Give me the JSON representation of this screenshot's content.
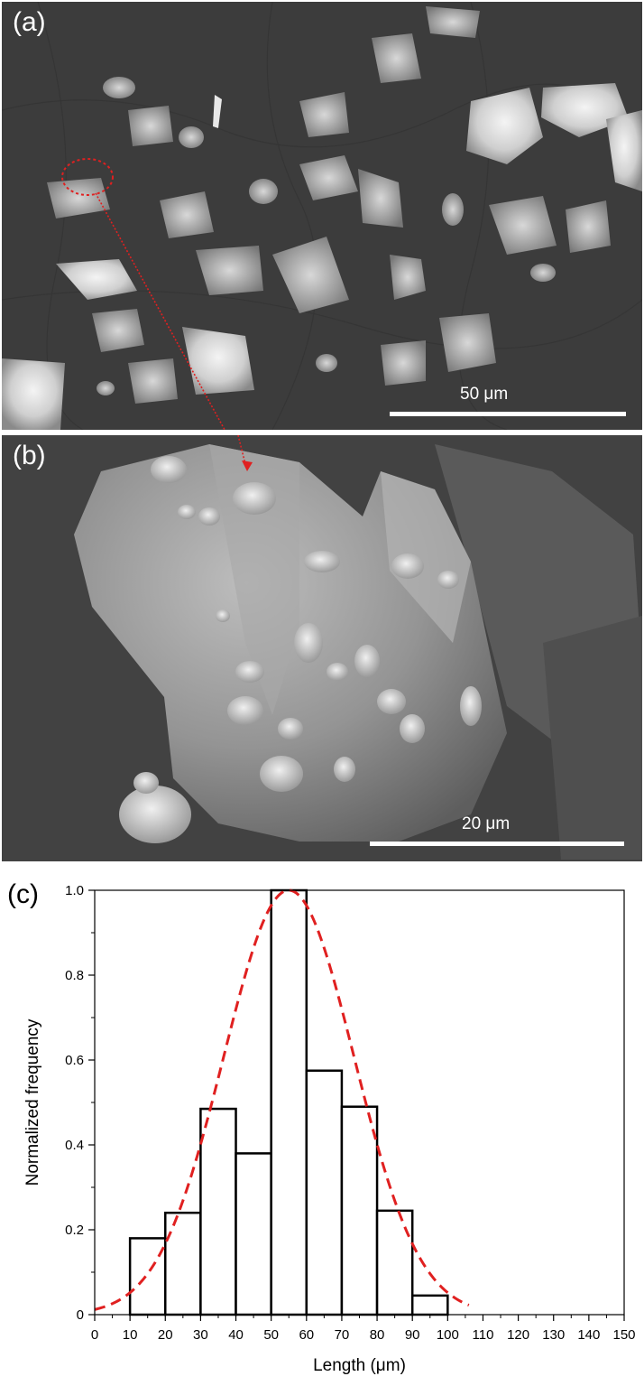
{
  "panels": {
    "a": {
      "label": "(a)",
      "scale_label": "50 μm"
    },
    "b": {
      "label": "(b)",
      "scale_label": "20 μm"
    },
    "c": {
      "label": "(c)"
    }
  },
  "colors": {
    "fit_line": "#e02020",
    "annotation": "#e02020",
    "sem_background": "#3e3e3e"
  },
  "chart_data": {
    "type": "bar",
    "histogram": true,
    "xlabel": "Length (μm)",
    "ylabel": "Normalized frequency",
    "xlim": [
      0,
      150
    ],
    "ylim": [
      0,
      1.0
    ],
    "xticks": [
      0,
      10,
      20,
      30,
      40,
      50,
      60,
      70,
      80,
      90,
      100,
      110,
      120,
      130,
      140,
      150
    ],
    "yticks": [
      0,
      0.2,
      0.4,
      0.6,
      0.8,
      1.0
    ],
    "ytick_labels": [
      "0",
      "0.2",
      "0.4",
      "0.6",
      "0.8",
      "1.0"
    ],
    "bins": [
      {
        "x0": 10,
        "x1": 20,
        "value": 0.18
      },
      {
        "x0": 20,
        "x1": 30,
        "value": 0.24
      },
      {
        "x0": 30,
        "x1": 40,
        "value": 0.485
      },
      {
        "x0": 40,
        "x1": 50,
        "value": 0.38
      },
      {
        "x0": 50,
        "x1": 60,
        "value": 1.0
      },
      {
        "x0": 60,
        "x1": 70,
        "value": 0.575
      },
      {
        "x0": 70,
        "x1": 80,
        "value": 0.49
      },
      {
        "x0": 80,
        "x1": 90,
        "value": 0.245
      },
      {
        "x0": 90,
        "x1": 100,
        "value": 0.045
      }
    ],
    "fit": {
      "type": "gaussian",
      "center": 55,
      "sigma": 18.5,
      "peak": 1.0,
      "x_range": [
        0,
        106
      ]
    },
    "grid": false
  }
}
